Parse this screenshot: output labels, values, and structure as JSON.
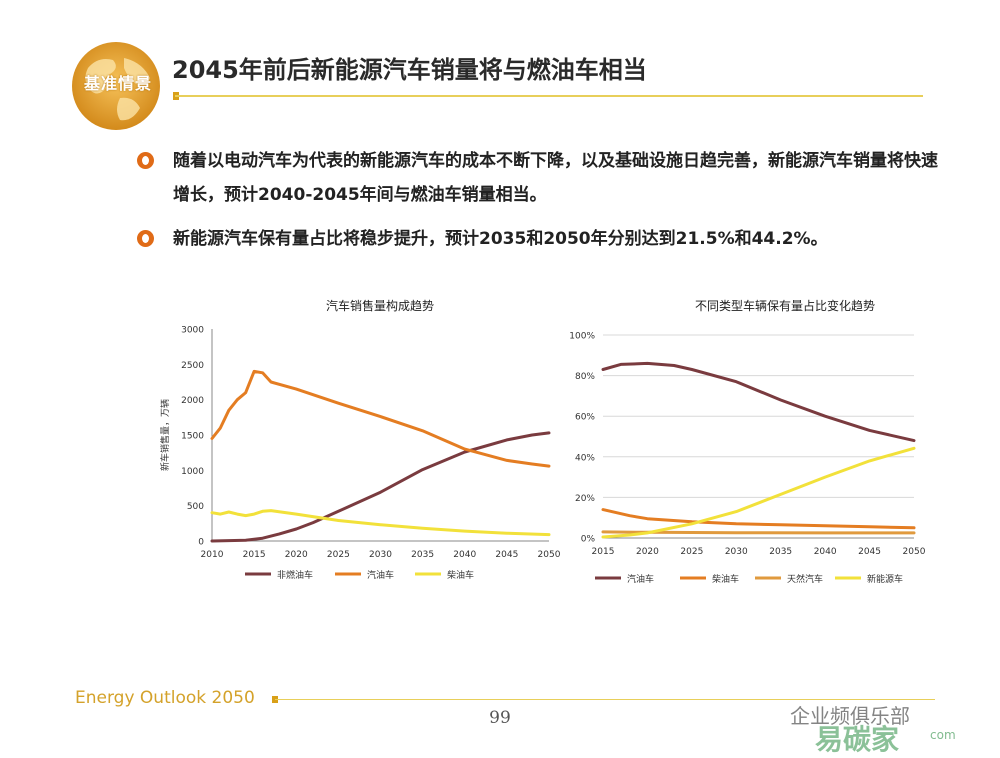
{
  "slide": {
    "badge": "基准情景",
    "title": "2045年前后新能源汽车销量将与燃油车相当",
    "bullets": [
      "随着以电动汽车为代表的新能源汽车的成本不断下降，以及基础设施日趋完善，新能源汽车销量将快速增长，预计2040-2045年间与燃油车销量相当。",
      "新能源汽车保有量占比将稳步提升，预计2035和2050年分别达到21.5%和44.2%。"
    ],
    "footer_brand": "Energy Outlook 2050",
    "page_number": "99",
    "watermark": "企业频俱乐部",
    "watermark2": "易碳家",
    "watermark3": "com"
  },
  "colors": {
    "accent_gold": "#e8cf5a",
    "bullet_orange": "#e06b17",
    "series_brown": "#7a3b3f",
    "series_orange": "#e47d22",
    "series_yellow": "#f2e13a",
    "series_tan": "#e09a3e"
  },
  "chart_data": [
    {
      "type": "line",
      "title": "汽车销售量构成趋势",
      "ylabel": "新车销售量，万辆",
      "xlabel": "",
      "xlim": [
        2010,
        2050
      ],
      "ylim": [
        0,
        3000
      ],
      "xticks": [
        "2010",
        "2015",
        "2020",
        "2025",
        "2030",
        "2035",
        "2040",
        "2045",
        "2050"
      ],
      "yticks": [
        "0",
        "500",
        "1000",
        "1500",
        "2000",
        "2500",
        "3000"
      ],
      "legend_position": "bottom",
      "series": [
        {
          "name": "非燃油车",
          "color": "#7a3b3f",
          "x": [
            2010,
            2014,
            2016,
            2018,
            2020,
            2022,
            2025,
            2030,
            2035,
            2040,
            2045,
            2048,
            2050
          ],
          "y": [
            0,
            10,
            40,
            100,
            170,
            260,
            420,
            690,
            1010,
            1260,
            1430,
            1500,
            1530
          ]
        },
        {
          "name": "汽油车",
          "color": "#e47d22",
          "x": [
            2010,
            2011,
            2012,
            2013,
            2014,
            2015,
            2016,
            2017,
            2020,
            2025,
            2030,
            2035,
            2040,
            2045,
            2048,
            2050
          ],
          "y": [
            1450,
            1600,
            1850,
            2000,
            2100,
            2400,
            2380,
            2250,
            2150,
            1950,
            1760,
            1560,
            1300,
            1140,
            1090,
            1060
          ]
        },
        {
          "name": "柴油车",
          "color": "#f2e13a",
          "x": [
            2010,
            2011,
            2012,
            2013,
            2014,
            2015,
            2016,
            2017,
            2020,
            2025,
            2030,
            2035,
            2040,
            2045,
            2050
          ],
          "y": [
            400,
            380,
            410,
            380,
            360,
            380,
            420,
            430,
            380,
            290,
            230,
            180,
            140,
            110,
            90
          ]
        }
      ]
    },
    {
      "type": "line",
      "title": "不同类型车辆保有量占比变化趋势",
      "xlabel": "",
      "ylabel": "",
      "xlim": [
        2015,
        2050
      ],
      "ylim": [
        0,
        100
      ],
      "xticks": [
        "2015",
        "2020",
        "2025",
        "2030",
        "2035",
        "2040",
        "2045",
        "2050"
      ],
      "yticks": [
        "0%",
        "20%",
        "40%",
        "60%",
        "80%",
        "100%"
      ],
      "legend_position": "bottom",
      "series": [
        {
          "name": "汽油车",
          "color": "#7a3b3f",
          "x": [
            2015,
            2017,
            2020,
            2023,
            2025,
            2030,
            2035,
            2040,
            2045,
            2050
          ],
          "y": [
            83,
            85.5,
            86,
            85,
            83,
            77,
            68,
            60,
            53,
            48
          ]
        },
        {
          "name": "柴油车",
          "color": "#e47d22",
          "x": [
            2015,
            2018,
            2020,
            2025,
            2030,
            2035,
            2040,
            2045,
            2050
          ],
          "y": [
            14,
            11,
            9.5,
            8,
            7,
            6.5,
            6,
            5.5,
            5
          ]
        },
        {
          "name": "天然汽车",
          "color": "#e09a3e",
          "x": [
            2015,
            2020,
            2030,
            2040,
            2050
          ],
          "y": [
            3,
            2.8,
            2.6,
            2.5,
            2.5
          ]
        },
        {
          "name": "新能源车",
          "color": "#f2e13a",
          "x": [
            2015,
            2018,
            2020,
            2025,
            2030,
            2035,
            2040,
            2045,
            2050
          ],
          "y": [
            0.5,
            1.5,
            2.5,
            7,
            13,
            21.5,
            30,
            38,
            44.2
          ]
        }
      ]
    }
  ]
}
